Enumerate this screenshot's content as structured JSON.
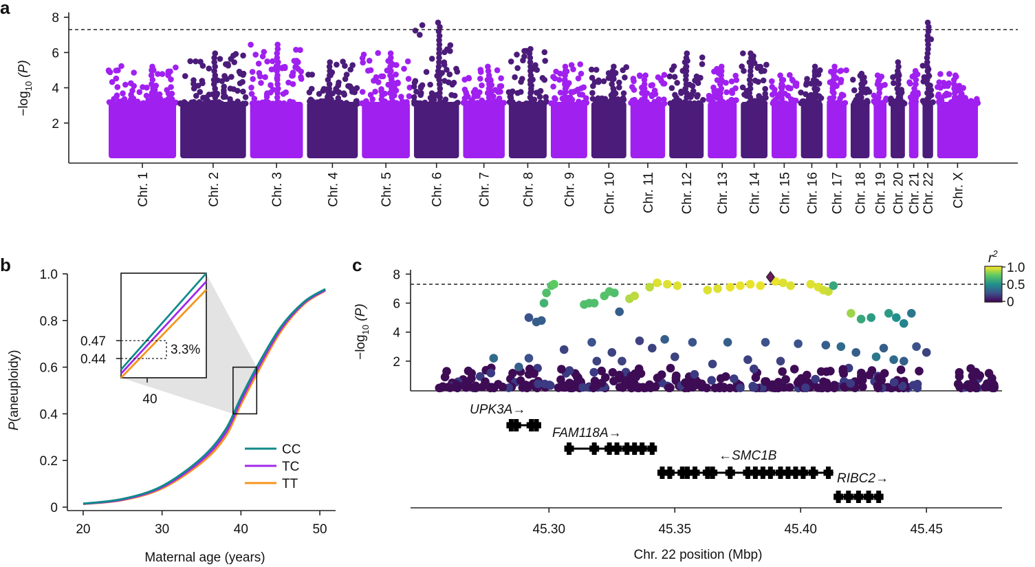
{
  "colors": {
    "purple_light": "#A020F0",
    "purple_dark": "#4B1C7A",
    "cc": "#108A8A",
    "tc": "#A02AEB",
    "tt": "#F5951D",
    "gene": "#000000"
  },
  "chart_data": [
    {
      "panel": "a",
      "type": "scatter",
      "subtype": "manhattan",
      "ylabel_prefix": "−log",
      "ylabel_sub": "10",
      "ylabel_suffix": "(P)",
      "yticks": [
        "2",
        "4",
        "6",
        "8"
      ],
      "ylim": [
        0,
        8.2
      ],
      "significance_threshold": 7.3,
      "chromosomes": [
        "Chr. 1",
        "Chr. 2",
        "Chr. 3",
        "Chr. 4",
        "Chr. 5",
        "Chr. 6",
        "Chr. 7",
        "Chr. 8",
        "Chr. 9",
        "Chr. 10",
        "Chr. 11",
        "Chr. 12",
        "Chr. 13",
        "Chr. 14",
        "Chr. 15",
        "Chr. 16",
        "Chr. 17",
        "Chr. 18",
        "Chr. 19",
        "Chr. 20",
        "Chr. 21",
        "Chr. 22",
        "Chr. X"
      ],
      "chromosome_lengths_mb": [
        249,
        243,
        198,
        191,
        181,
        171,
        159,
        146,
        141,
        136,
        135,
        134,
        115,
        107,
        102,
        90,
        83,
        80,
        59,
        64,
        47,
        51,
        156
      ],
      "max_log10p": [
        5.4,
        6.0,
        6.5,
        5.6,
        6.0,
        7.9,
        5.2,
        6.2,
        5.4,
        5.2,
        4.8,
        6.0,
        5.2,
        6.1,
        4.8,
        5.2,
        5.4,
        4.9,
        4.8,
        5.5,
        5.0,
        7.7,
        4.8
      ]
    },
    {
      "panel": "b",
      "type": "line",
      "xlabel": "Maternal age (years)",
      "ylabel_prefix": "P",
      "ylabel_suffix": "(aneuploidy)",
      "xlim": [
        18,
        52
      ],
      "ylim": [
        0,
        1.0
      ],
      "xticks": [
        "20",
        "30",
        "40",
        "50"
      ],
      "yticks": [
        "0",
        "0.2",
        "0.4",
        "0.6",
        "0.8",
        "1.0"
      ],
      "series": [
        {
          "name": "CC",
          "x": [
            20,
            25,
            30,
            35,
            38,
            40,
            42,
            45,
            48,
            50.7
          ],
          "y": [
            0.015,
            0.035,
            0.09,
            0.21,
            0.33,
            0.47,
            0.6,
            0.77,
            0.88,
            0.935
          ]
        },
        {
          "name": "TC",
          "x": [
            20,
            25,
            30,
            35,
            38,
            40,
            42,
            45,
            48,
            50.7
          ],
          "y": [
            0.014,
            0.032,
            0.085,
            0.2,
            0.315,
            0.455,
            0.585,
            0.76,
            0.875,
            0.93
          ]
        },
        {
          "name": "TT",
          "x": [
            20,
            25,
            30,
            35,
            38,
            40,
            42,
            45,
            48,
            50.7
          ],
          "y": [
            0.013,
            0.03,
            0.08,
            0.19,
            0.3,
            0.44,
            0.57,
            0.75,
            0.87,
            0.928
          ]
        }
      ],
      "legend": [
        "CC",
        "TC",
        "TT"
      ],
      "inset": {
        "xtick": "40",
        "ytick_labels": [
          "0.47",
          "0.44"
        ],
        "annotation": "3.3%",
        "zoom_range_x": [
          39,
          42
        ],
        "zoom_range_y": [
          0.4,
          0.6
        ]
      }
    },
    {
      "panel": "c",
      "type": "scatter",
      "subtype": "regional-association",
      "xlabel": "Chr. 22 position (Mbp)",
      "ylabel_prefix": "−log",
      "ylabel_sub": "10",
      "ylabel_suffix": "(P)",
      "xlim": [
        45.245,
        45.48
      ],
      "ylim": [
        0,
        8.3
      ],
      "xticks": [
        "45.30",
        "45.35",
        "45.40",
        "45.45"
      ],
      "yticks": [
        "2",
        "4",
        "6",
        "8"
      ],
      "significance_threshold": 7.3,
      "colorbar": {
        "title": "r",
        "title_sup": "2",
        "ticks": [
          "1.0",
          "0.5",
          "0"
        ]
      },
      "lead_snp": {
        "x": 45.388,
        "y": 7.8
      },
      "points": [
        [
          45.292,
          5.0,
          0.25
        ],
        [
          45.295,
          4.7,
          0.3
        ],
        [
          45.297,
          4.8,
          0.3
        ],
        [
          45.298,
          6.0,
          0.65
        ],
        [
          45.299,
          6.7,
          0.7
        ],
        [
          45.301,
          7.2,
          0.72
        ],
        [
          45.302,
          7.3,
          0.75
        ],
        [
          45.314,
          5.9,
          0.7
        ],
        [
          45.316,
          6.0,
          0.7
        ],
        [
          45.318,
          6.0,
          0.7
        ],
        [
          45.322,
          6.5,
          0.72
        ],
        [
          45.324,
          6.8,
          0.72
        ],
        [
          45.326,
          6.7,
          0.7
        ],
        [
          45.328,
          5.4,
          0.3
        ],
        [
          45.332,
          6.3,
          0.88
        ],
        [
          45.334,
          6.5,
          0.9
        ],
        [
          45.34,
          7.1,
          0.9
        ],
        [
          45.343,
          7.4,
          0.95
        ],
        [
          45.347,
          7.3,
          0.95
        ],
        [
          45.351,
          7.2,
          0.95
        ],
        [
          45.363,
          6.9,
          0.95
        ],
        [
          45.367,
          7.0,
          0.95
        ],
        [
          45.372,
          7.1,
          0.97
        ],
        [
          45.376,
          7.2,
          0.97
        ],
        [
          45.38,
          7.3,
          0.97
        ],
        [
          45.384,
          7.2,
          0.97
        ],
        [
          45.39,
          7.5,
          0.97
        ],
        [
          45.393,
          7.4,
          0.95
        ],
        [
          45.396,
          7.2,
          0.95
        ],
        [
          45.404,
          7.3,
          0.95
        ],
        [
          45.407,
          7.1,
          0.95
        ],
        [
          45.409,
          6.9,
          0.93
        ],
        [
          45.411,
          6.8,
          0.92
        ],
        [
          45.413,
          7.2,
          0.6
        ],
        [
          45.42,
          5.3,
          0.85
        ],
        [
          45.424,
          4.9,
          0.6
        ],
        [
          45.428,
          5.0,
          0.55
        ],
        [
          45.435,
          5.3,
          0.55
        ],
        [
          45.438,
          5.0,
          0.5
        ],
        [
          45.441,
          4.6,
          0.45
        ],
        [
          45.444,
          5.3,
          0.4
        ],
        [
          45.278,
          2.2,
          0.35
        ],
        [
          45.288,
          1.6,
          0.3
        ],
        [
          45.292,
          2.2,
          0.25
        ],
        [
          45.306,
          2.8,
          0.2
        ],
        [
          45.317,
          3.3,
          0.25
        ],
        [
          45.319,
          2.0,
          0.2
        ],
        [
          45.325,
          2.6,
          0.2
        ],
        [
          45.329,
          2.0,
          0.2
        ],
        [
          45.336,
          3.4,
          0.2
        ],
        [
          45.341,
          2.9,
          0.2
        ],
        [
          45.346,
          3.5,
          0.3
        ],
        [
          45.35,
          2.3,
          0.2
        ],
        [
          45.357,
          3.3,
          0.25
        ],
        [
          45.365,
          1.8,
          0.2
        ],
        [
          45.371,
          3.3,
          0.3
        ],
        [
          45.379,
          2.1,
          0.2
        ],
        [
          45.386,
          3.3,
          0.25
        ],
        [
          45.392,
          2.0,
          0.2
        ],
        [
          45.399,
          3.2,
          0.25
        ],
        [
          45.41,
          3.1,
          0.3
        ],
        [
          45.416,
          3.0,
          0.35
        ],
        [
          45.422,
          2.6,
          0.3
        ],
        [
          45.43,
          2.3,
          0.4
        ],
        [
          45.433,
          2.9,
          0.3
        ],
        [
          45.437,
          2.1,
          0.35
        ],
        [
          45.441,
          2.0,
          0.3
        ],
        [
          45.446,
          3.0,
          0.25
        ],
        [
          45.45,
          2.6,
          0.2
        ]
      ],
      "genes": [
        {
          "name": "UPK3A",
          "strand": "→",
          "start": 45.285,
          "end": 45.296,
          "exons": [
            45.285,
            45.287,
            45.293,
            45.295
          ]
        },
        {
          "name": "FAM118A",
          "strand": "→",
          "start": 45.307,
          "end": 45.342,
          "exons": [
            45.308,
            45.318,
            45.324,
            45.327,
            45.331,
            45.334,
            45.337,
            45.341
          ]
        },
        {
          "name": "SMC1B",
          "strand": "←",
          "start": 45.344,
          "end": 45.413,
          "exons": [
            45.345,
            45.348,
            45.353,
            45.355,
            45.358,
            45.363,
            45.365,
            45.372,
            45.379,
            45.382,
            45.385,
            45.388,
            45.392,
            45.395,
            45.398,
            45.401,
            45.405,
            45.411
          ]
        },
        {
          "name": "RIBC2",
          "strand": "→",
          "start": 45.414,
          "end": 45.432,
          "exons": [
            45.415,
            45.419,
            45.423,
            45.427,
            45.431
          ]
        }
      ]
    }
  ]
}
